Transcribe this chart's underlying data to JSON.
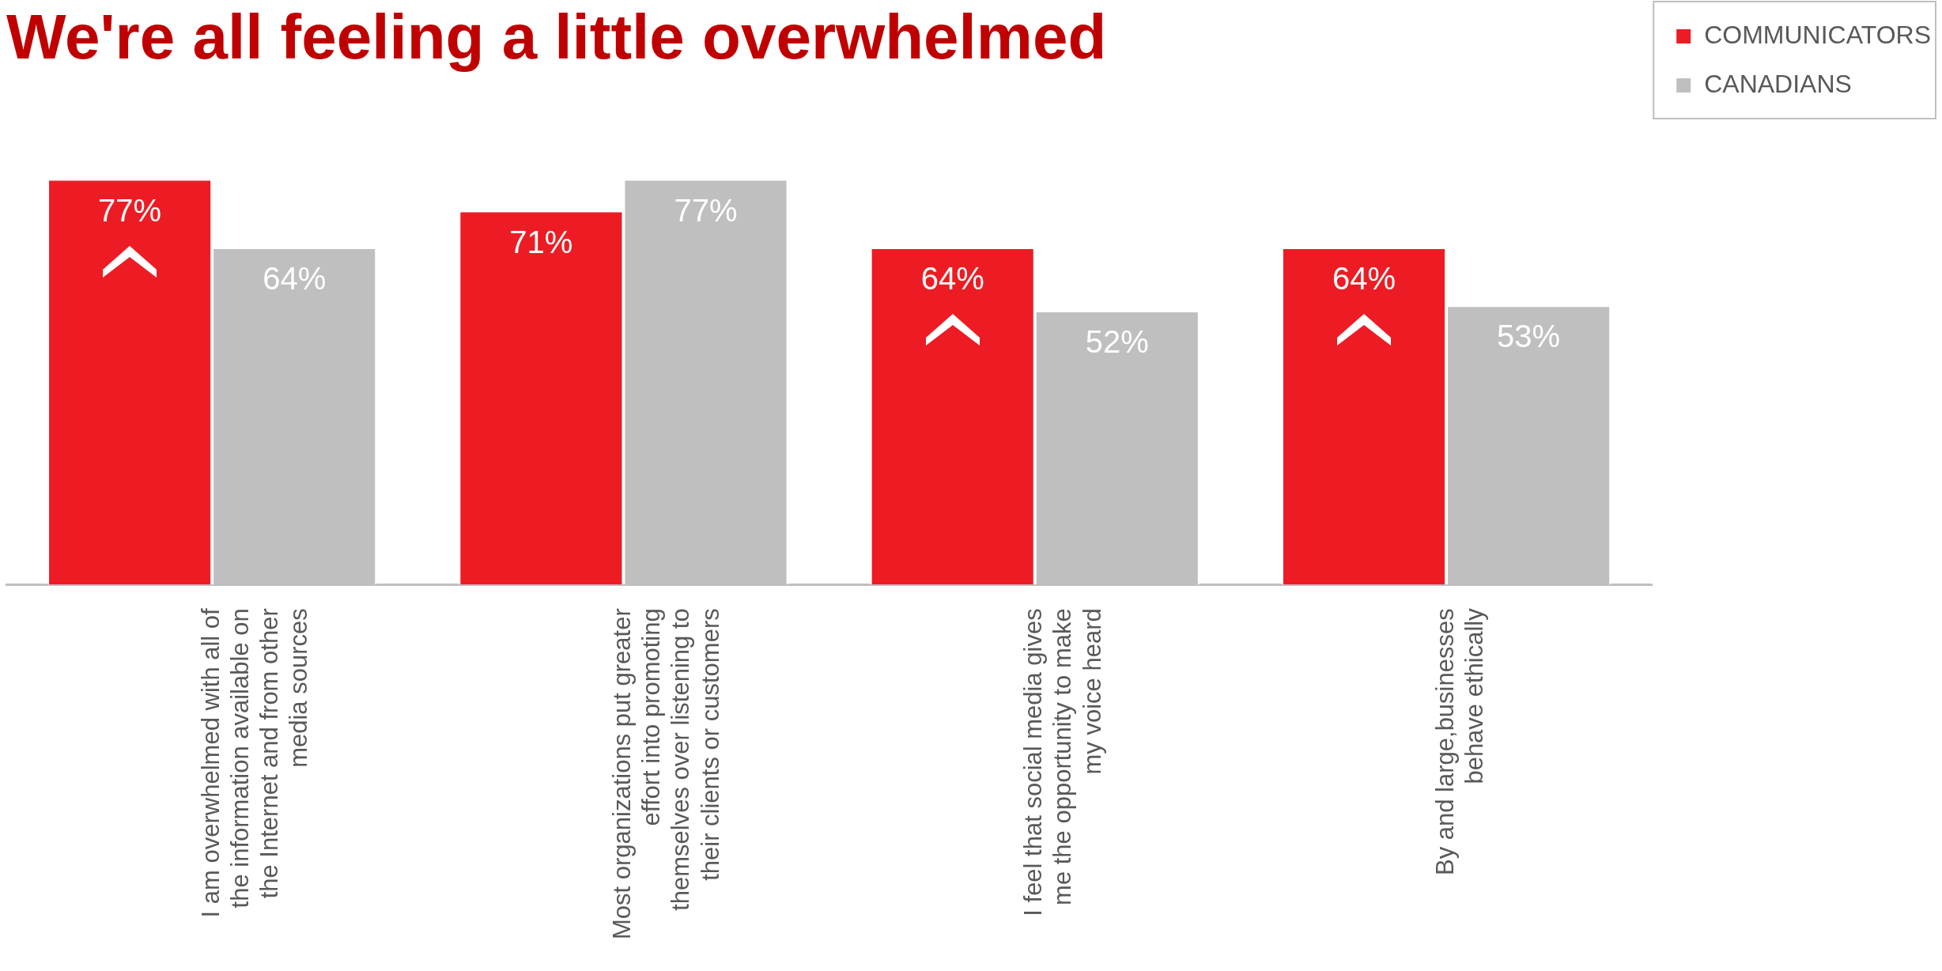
{
  "chart_data": {
    "type": "bar",
    "title": "We're all feeling a little overwhelmed",
    "categories": [
      "I am overwhelmed with all of\nthe information available on\nthe Internet and from other\nmedia sources",
      "Most organizations put greater\neffort into promoting\nthemselves over listening to\ntheir clients or customers",
      "I feel that social media gives\nme the opportunity to make\nmy voice heard",
      "By and large,businesses\nbehave ethically"
    ],
    "series": [
      {
        "name": "COMMUNICATORS",
        "color": "#ed1c24",
        "values": [
          77,
          71,
          64,
          64
        ],
        "value_labels": [
          "77%",
          "71%",
          "64%",
          "64%"
        ]
      },
      {
        "name": "CANADIANS",
        "color": "#bfbfbf",
        "values": [
          64,
          77,
          52,
          53
        ],
        "value_labels": [
          "64%",
          "77%",
          "52%",
          "53%"
        ]
      }
    ],
    "legend": "top right",
    "grid": false,
    "tick_labels": "x"
  }
}
